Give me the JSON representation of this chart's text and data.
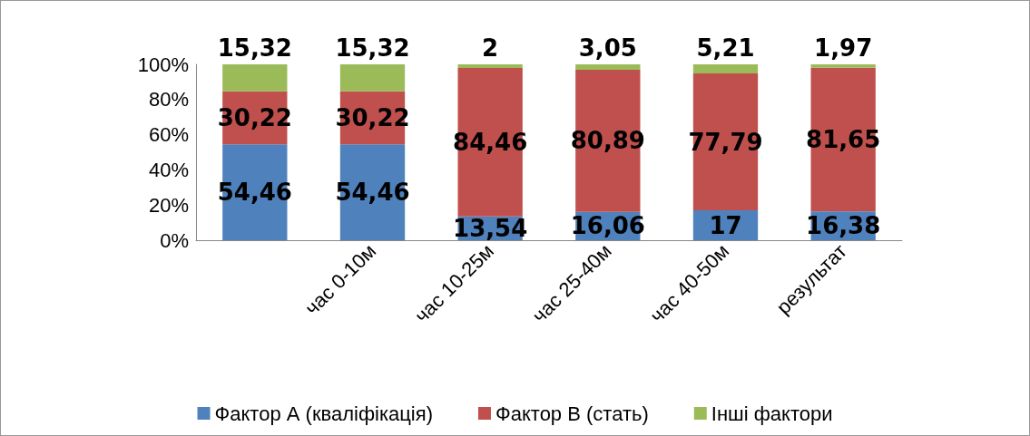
{
  "chart_data": {
    "type": "bar",
    "stacked": true,
    "categories": [
      null,
      "час 0-10м",
      "час 10-25м",
      "час 25-40м",
      "час 40-50м",
      "результат"
    ],
    "series": [
      {
        "name": "Фактор А (кваліфікація)",
        "color": "#4f81bd",
        "values": [
          54.46,
          54.46,
          13.54,
          16.06,
          17,
          16.38
        ],
        "value_labels": [
          "54,46",
          "54,46",
          "13,54",
          "16,06",
          "17",
          "16,38"
        ]
      },
      {
        "name": "Фактор В (стать)",
        "color": "#c0504d",
        "values": [
          30.22,
          30.22,
          84.46,
          80.89,
          77.79,
          81.65
        ],
        "value_labels": [
          "30,22",
          "30,22",
          "84,46",
          "80,89",
          "77,79",
          "81,65"
        ]
      },
      {
        "name": "Інші фактори",
        "color": "#9bbb59",
        "values": [
          15.32,
          15.32,
          2,
          3.05,
          5.21,
          1.97
        ],
        "value_labels": [
          "15,32",
          "15,32",
          "2",
          "3,05",
          "5,21",
          "1,97"
        ]
      }
    ],
    "ylim": [
      0,
      100
    ],
    "yticks": [
      {
        "value": 0,
        "label": "0%"
      },
      {
        "value": 20,
        "label": "20%"
      },
      {
        "value": 40,
        "label": "40%"
      },
      {
        "value": 60,
        "label": "60%"
      },
      {
        "value": 80,
        "label": "80%"
      },
      {
        "value": 100,
        "label": "100%"
      }
    ],
    "grid": false,
    "legend": "bottom"
  }
}
